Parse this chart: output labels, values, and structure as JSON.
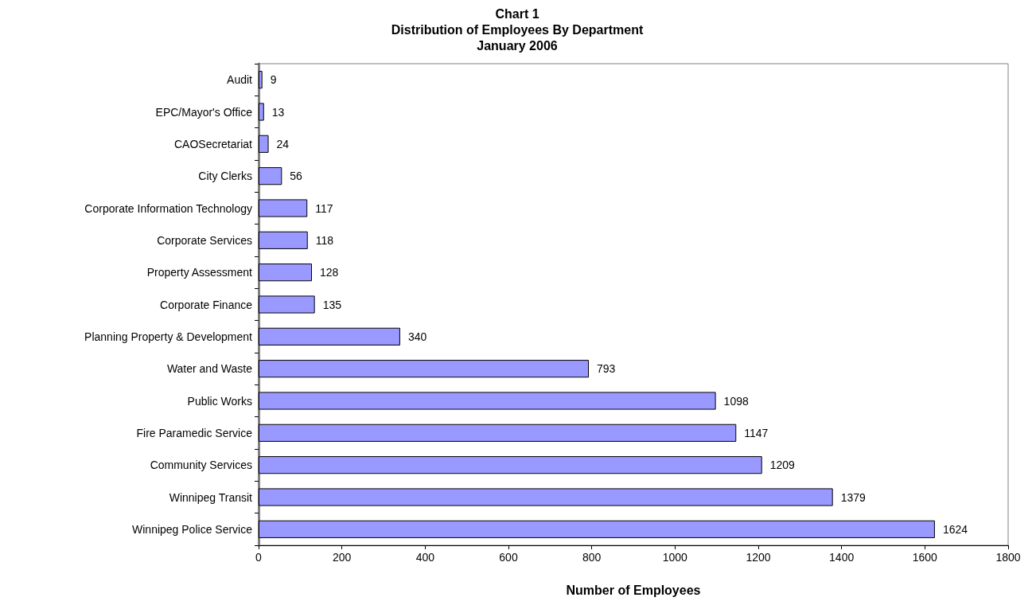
{
  "chart_data": {
    "type": "bar",
    "orientation": "horizontal",
    "title": "Chart 1\nDistribution of Employees By Department\nJanuary 2006",
    "xlabel": "Number of Employees",
    "categories": [
      "Audit",
      "EPC/Mayor's Office",
      "CAOSecretariat",
      "City Clerks",
      "Corporate Information Technology",
      "Corporate Services",
      "Property Assessment",
      "Corporate Finance",
      "Planning Property & Development",
      "Water and Waste",
      "Public Works",
      "Fire Paramedic Service",
      "Community Services",
      "Winnipeg Transit",
      "Winnipeg Police Service"
    ],
    "values": [
      9,
      13,
      24,
      56,
      117,
      118,
      128,
      135,
      340,
      793,
      1098,
      1147,
      1209,
      1379,
      1624
    ],
    "color": "#9999ff",
    "xlim": [
      0,
      1800
    ],
    "xticks": [
      0,
      200,
      400,
      600,
      800,
      1000,
      1200,
      1400,
      1600,
      1800
    ],
    "data_labels": true,
    "grid": false
  }
}
